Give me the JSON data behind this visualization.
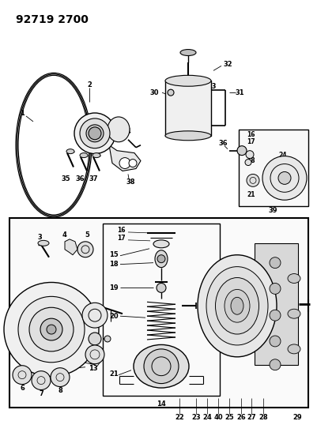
{
  "title": "92719 2700",
  "bg_color": "#ffffff",
  "title_fontsize": 10,
  "fig_width": 4.02,
  "fig_height": 5.33,
  "dpi": 100,
  "line_color": "#000000",
  "label_fontsize": 6.0
}
